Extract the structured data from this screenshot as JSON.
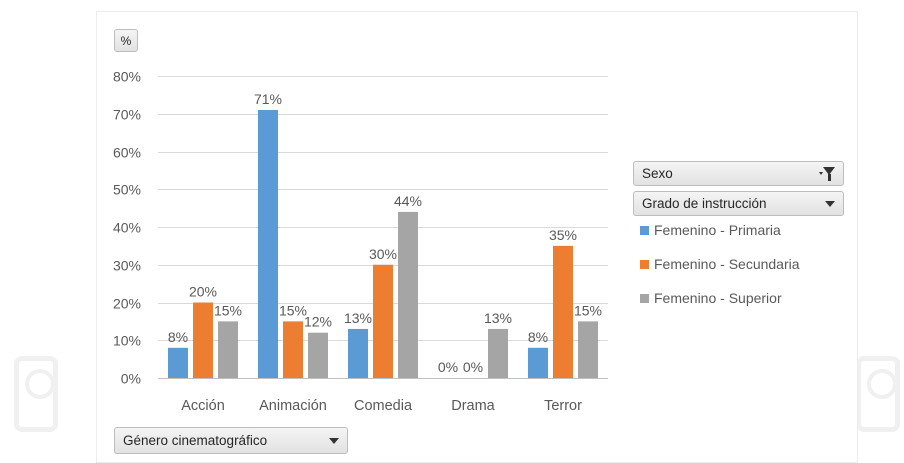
{
  "pivot": {
    "measure_label": "%",
    "filter_field": "Sexo",
    "legend_field": "Grado de instrucción",
    "axis_field": "Género cinematográfico"
  },
  "colors": {
    "series": [
      "#5b9bd5",
      "#ed7d31",
      "#a5a5a5"
    ],
    "gridline": "#d9d9d9",
    "text": "#595959"
  },
  "chart_data": {
    "type": "bar",
    "categories": [
      "Acción",
      "Animación",
      "Comedia",
      "Drama",
      "Terror"
    ],
    "series": [
      {
        "name": "Femenino - Primaria",
        "values": [
          8,
          71,
          13,
          0,
          8
        ],
        "labels": [
          "8%",
          "71%",
          "13%",
          "0%",
          "8%"
        ]
      },
      {
        "name": "Femenino - Secundaria",
        "values": [
          20,
          15,
          30,
          0,
          35
        ],
        "labels": [
          "20%",
          "15%",
          "30%",
          "0%",
          "35%"
        ]
      },
      {
        "name": "Femenino - Superior",
        "values": [
          15,
          12,
          44,
          13,
          15
        ],
        "labels": [
          "15%",
          "12%",
          "44%",
          "13%",
          "15%"
        ]
      }
    ],
    "y_ticks": [
      "0%",
      "10%",
      "20%",
      "30%",
      "40%",
      "50%",
      "60%",
      "70%",
      "80%"
    ],
    "ylim": [
      0,
      80
    ],
    "grid": true,
    "legend": "right"
  }
}
